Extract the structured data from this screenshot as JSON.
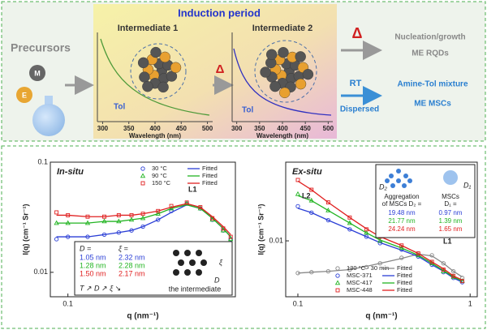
{
  "scheme": {
    "precursors": "Precursors",
    "m_label": "M",
    "e_label": "E",
    "induction_period": "Induction period",
    "intermediate_1": "Intermediate 1",
    "intermediate_2": "Intermediate 2",
    "tol_1": "Tol",
    "tol_2": "Tol",
    "spectrum_1": {
      "xlim": [
        290,
        510
      ],
      "xticks": [
        300,
        350,
        400,
        450,
        500
      ],
      "xlabel": "Wavelength (nm)"
    },
    "spectrum_2": {
      "xlim": [
        290,
        510
      ],
      "xticks": [
        300,
        350,
        400,
        450,
        500
      ],
      "xlabel": "Wavelength (nm)"
    },
    "delta_1": "Δ",
    "delta_2": "Δ",
    "nucleation": "Nucleation/growth",
    "me_rqds": "ME RQDs",
    "rt": "RT",
    "dispersed": "Dispersed",
    "amine_tol": "Amine-Tol mixture",
    "me_mscs": "ME MSCs"
  },
  "chart_data": [
    {
      "type": "scatter",
      "title": "In-situ",
      "xscale": "log",
      "yscale": "log",
      "xlabel": "q (nm⁻¹)",
      "ylabel": "I(q) (cm⁻¹ Sr⁻¹)",
      "xlim": [
        0.085,
        0.47
      ],
      "ylim": [
        0.006,
        0.1
      ],
      "xticks": [
        0.1
      ],
      "yticks": [
        0.01,
        0.1
      ],
      "legend": "upper right",
      "x": [
        0.09,
        0.1,
        0.12,
        0.14,
        0.16,
        0.18,
        0.2,
        0.23,
        0.26,
        0.3,
        0.34,
        0.38,
        0.42,
        0.45
      ],
      "series": [
        {
          "name": "30 °C",
          "color": "#2b3fd6",
          "style": "circle",
          "values": [
            0.02,
            0.021,
            0.021,
            0.022,
            0.023,
            0.024,
            0.026,
            0.03,
            0.036,
            0.042,
            0.038,
            0.03,
            0.024,
            0.02
          ]
        },
        {
          "name": "Fitted",
          "color": "#2b3fd6",
          "style": "line",
          "values": [
            0.021,
            0.021,
            0.021,
            0.022,
            0.023,
            0.024,
            0.026,
            0.03,
            0.035,
            0.041,
            0.038,
            0.031,
            0.025,
            0.021
          ]
        },
        {
          "name": "90 °C",
          "color": "#22b422",
          "style": "triangle",
          "values": [
            0.028,
            0.028,
            0.028,
            0.029,
            0.029,
            0.03,
            0.031,
            0.034,
            0.038,
            0.042,
            0.038,
            0.03,
            0.024,
            0.02
          ]
        },
        {
          "name": "Fitted",
          "color": "#22b422",
          "style": "line",
          "values": [
            0.028,
            0.028,
            0.028,
            0.029,
            0.029,
            0.03,
            0.031,
            0.034,
            0.038,
            0.041,
            0.038,
            0.031,
            0.025,
            0.021
          ]
        },
        {
          "name": "150 °C",
          "color": "#e02020",
          "style": "square",
          "values": [
            0.035,
            0.033,
            0.032,
            0.032,
            0.033,
            0.033,
            0.034,
            0.036,
            0.04,
            0.043,
            0.039,
            0.031,
            0.025,
            0.021
          ]
        },
        {
          "name": "Fitted",
          "color": "#e02020",
          "style": "line",
          "values": [
            0.033,
            0.033,
            0.032,
            0.032,
            0.033,
            0.033,
            0.034,
            0.036,
            0.039,
            0.042,
            0.039,
            0.032,
            0.026,
            0.022
          ]
        }
      ],
      "annotations": [
        "L1"
      ],
      "inset": {
        "headers": [
          "D =",
          "ξ ="
        ],
        "rows": [
          [
            "1.05 nm",
            "2.32 nm"
          ],
          [
            "1.28 nm",
            "2.28 nm"
          ],
          [
            "1.50 nm",
            "2.17 nm"
          ]
        ],
        "row_colors": [
          "#2b3fd6",
          "#22b422",
          "#e02020"
        ],
        "trend": "T ↗  D ↗  ξ ↘",
        "xi": "ξ",
        "d": "D",
        "caption": "the intermediate"
      }
    },
    {
      "type": "scatter",
      "title": "Ex-situ",
      "xscale": "log",
      "yscale": "log",
      "xlabel": "q (nm⁻¹)",
      "ylabel": "I(q) (cm⁻¹ Sr⁻¹)",
      "xlim": [
        0.085,
        1.1
      ],
      "ylim": [
        0.0028,
        0.06
      ],
      "xticks": [
        0.1,
        1
      ],
      "yticks": [
        0.01
      ],
      "legend": "lower center",
      "x": [
        0.1,
        0.12,
        0.15,
        0.2,
        0.25,
        0.3,
        0.4,
        0.5,
        0.6,
        0.7,
        0.8,
        0.9
      ],
      "series": [
        {
          "name": "130 °C - 30 min",
          "color": "#888888",
          "style": "circle",
          "values": [
            0.0048,
            0.0049,
            0.005,
            0.0052,
            0.0055,
            0.006,
            0.0068,
            0.0075,
            0.0072,
            0.006,
            0.005,
            0.0043
          ]
        },
        {
          "name": "Fitted",
          "color": "#888888",
          "style": "line",
          "values": [
            0.0048,
            0.0049,
            0.005,
            0.0052,
            0.0056,
            0.006,
            0.0067,
            0.0074,
            0.0071,
            0.006,
            0.005,
            0.0044
          ]
        },
        {
          "name": "MSC-371",
          "color": "#2b3fd6",
          "style": "circle",
          "values": [
            0.022,
            0.019,
            0.016,
            0.013,
            0.011,
            0.0095,
            0.0082,
            0.007,
            0.0058,
            0.0049,
            0.0043,
            0.0039
          ]
        },
        {
          "name": "Fitted",
          "color": "#2b3fd6",
          "style": "line",
          "values": [
            0.021,
            0.019,
            0.016,
            0.013,
            0.011,
            0.0096,
            0.0081,
            0.007,
            0.0058,
            0.005,
            0.0043,
            0.0039
          ]
        },
        {
          "name": "MSC-417",
          "color": "#22b422",
          "style": "triangle",
          "values": [
            0.029,
            0.025,
            0.02,
            0.015,
            0.012,
            0.01,
            0.0085,
            0.0072,
            0.006,
            0.005,
            0.0044,
            0.004
          ]
        },
        {
          "name": "Fitted",
          "color": "#22b422",
          "style": "line",
          "values": [
            0.028,
            0.025,
            0.02,
            0.015,
            0.012,
            0.0102,
            0.0085,
            0.0072,
            0.006,
            0.0051,
            0.0044,
            0.004
          ]
        },
        {
          "name": "MSC-448",
          "color": "#e02020",
          "style": "square",
          "values": [
            0.04,
            0.032,
            0.024,
            0.017,
            0.013,
            0.011,
            0.009,
            0.0075,
            0.0062,
            0.0052,
            0.0045,
            0.004
          ]
        },
        {
          "name": "Fitted",
          "color": "#e02020",
          "style": "line",
          "values": [
            0.039,
            0.032,
            0.024,
            0.017,
            0.0132,
            0.011,
            0.009,
            0.0075,
            0.0062,
            0.0053,
            0.0045,
            0.0041
          ]
        }
      ],
      "annotations": [
        "L2",
        "L1"
      ],
      "inset": {
        "icon_d2": "D₂",
        "icon_d1": "D₁",
        "headers": [
          "Aggregation",
          "of MSCs D₂ =",
          "MSCs",
          "D₁ ="
        ],
        "rows": [
          [
            "19.48 nm",
            "0.97 nm"
          ],
          [
            "21.77 nm",
            "1.39 nm"
          ],
          [
            "24.24 nm",
            "1.65 nm"
          ]
        ],
        "row_colors": [
          "#2b3fd6",
          "#22b422",
          "#e02020"
        ]
      }
    }
  ]
}
